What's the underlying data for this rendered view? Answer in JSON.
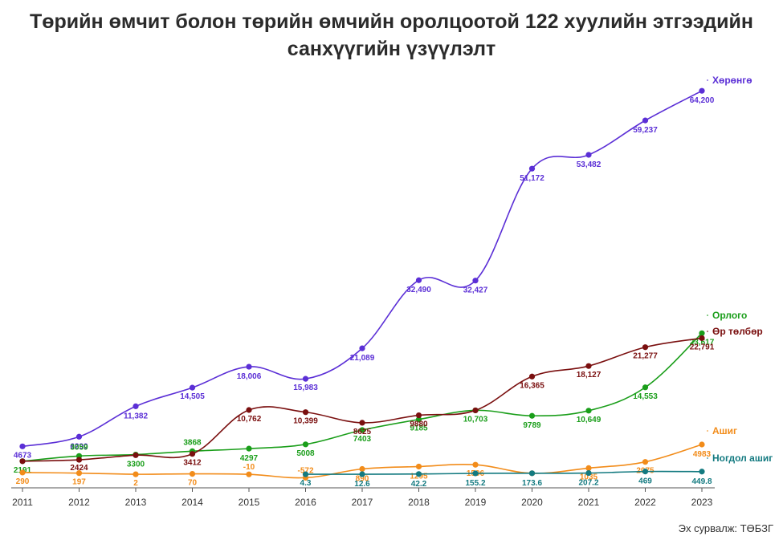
{
  "title_line1": "Төрийн өмчит болон төрийн өмчийн оролцоотой 122 хуулийн этгээдийн",
  "title_line2": "санхүүгийн үзүүлэлт",
  "source": "Эх сурвалж: ТӨБЗГ",
  "chart_data": {
    "type": "line",
    "title": "Төрийн өмчит болон төрийн өмчийн оролцоотой 122 хуулийн этгээдийн санхүүгийн үзүүлэлт",
    "xlabel": "",
    "ylabel": "",
    "x": [
      2011,
      2012,
      2013,
      2014,
      2015,
      2016,
      2017,
      2018,
      2019,
      2020,
      2021,
      2022,
      2023
    ],
    "ylim": [
      -2000,
      70000
    ],
    "grid": false,
    "legend": "line-end labels",
    "series": [
      {
        "name": "Хөрөнгө",
        "color": "#5b2fd6",
        "values": [
          4673,
          6290,
          11382,
          14505,
          18006,
          15983,
          21089,
          32490,
          32427,
          51172,
          53482,
          59237,
          64200
        ],
        "labels": [
          "4673",
          "6290",
          "11,382",
          "14,505",
          "18,006",
          "15,983",
          "21,089",
          "32,490",
          "32,427",
          "51,172",
          "53,482",
          "59,237",
          "64,200"
        ]
      },
      {
        "name": "Орлого",
        "color": "#1a9e1a",
        "values": [
          2191,
          3059,
          3300,
          3868,
          4297,
          5008,
          7403,
          9185,
          10703,
          9789,
          10649,
          14553,
          23617
        ],
        "labels": [
          "2191",
          "3059",
          "3300",
          "3868",
          "4297",
          "5008",
          "7403",
          "9185",
          "10,703",
          "9789",
          "10,649",
          "14,553",
          "23,617"
        ]
      },
      {
        "name": "Өр төлбөр",
        "color": "#7a0f0f",
        "values": [
          2191,
          2424,
          3200,
          3412,
          10762,
          10399,
          8625,
          9880,
          10703,
          16365,
          18127,
          21277,
          22791
        ],
        "labels": [
          "",
          "2424",
          "",
          "3412",
          "10,762",
          "10,399",
          "8625",
          "9880",
          "",
          "16,365",
          "18,127",
          "21,277",
          "22,791"
        ]
      },
      {
        "name": "Ашиг",
        "color": "#f28c1a",
        "values": [
          290,
          197,
          2,
          70,
          -10,
          -572,
          890,
          1295,
          1596,
          173.6,
          1035,
          2075,
          4983
        ],
        "labels": [
          "290",
          "197",
          "2",
          "70",
          "-10",
          "-572",
          "890",
          "1295",
          "1596",
          "",
          "1035",
          "2075",
          "4983"
        ]
      },
      {
        "name": "Ногдол ашиг",
        "color": "#137a80",
        "values": [
          null,
          null,
          null,
          null,
          null,
          4.3,
          12.6,
          42.2,
          155.2,
          173.6,
          207.2,
          469,
          449.8
        ],
        "labels": [
          "",
          "",
          "",
          "",
          "",
          "4.3",
          "12.6",
          "42.2",
          "155.2",
          "173.6",
          "207.2",
          "469",
          "449.8"
        ]
      }
    ]
  }
}
